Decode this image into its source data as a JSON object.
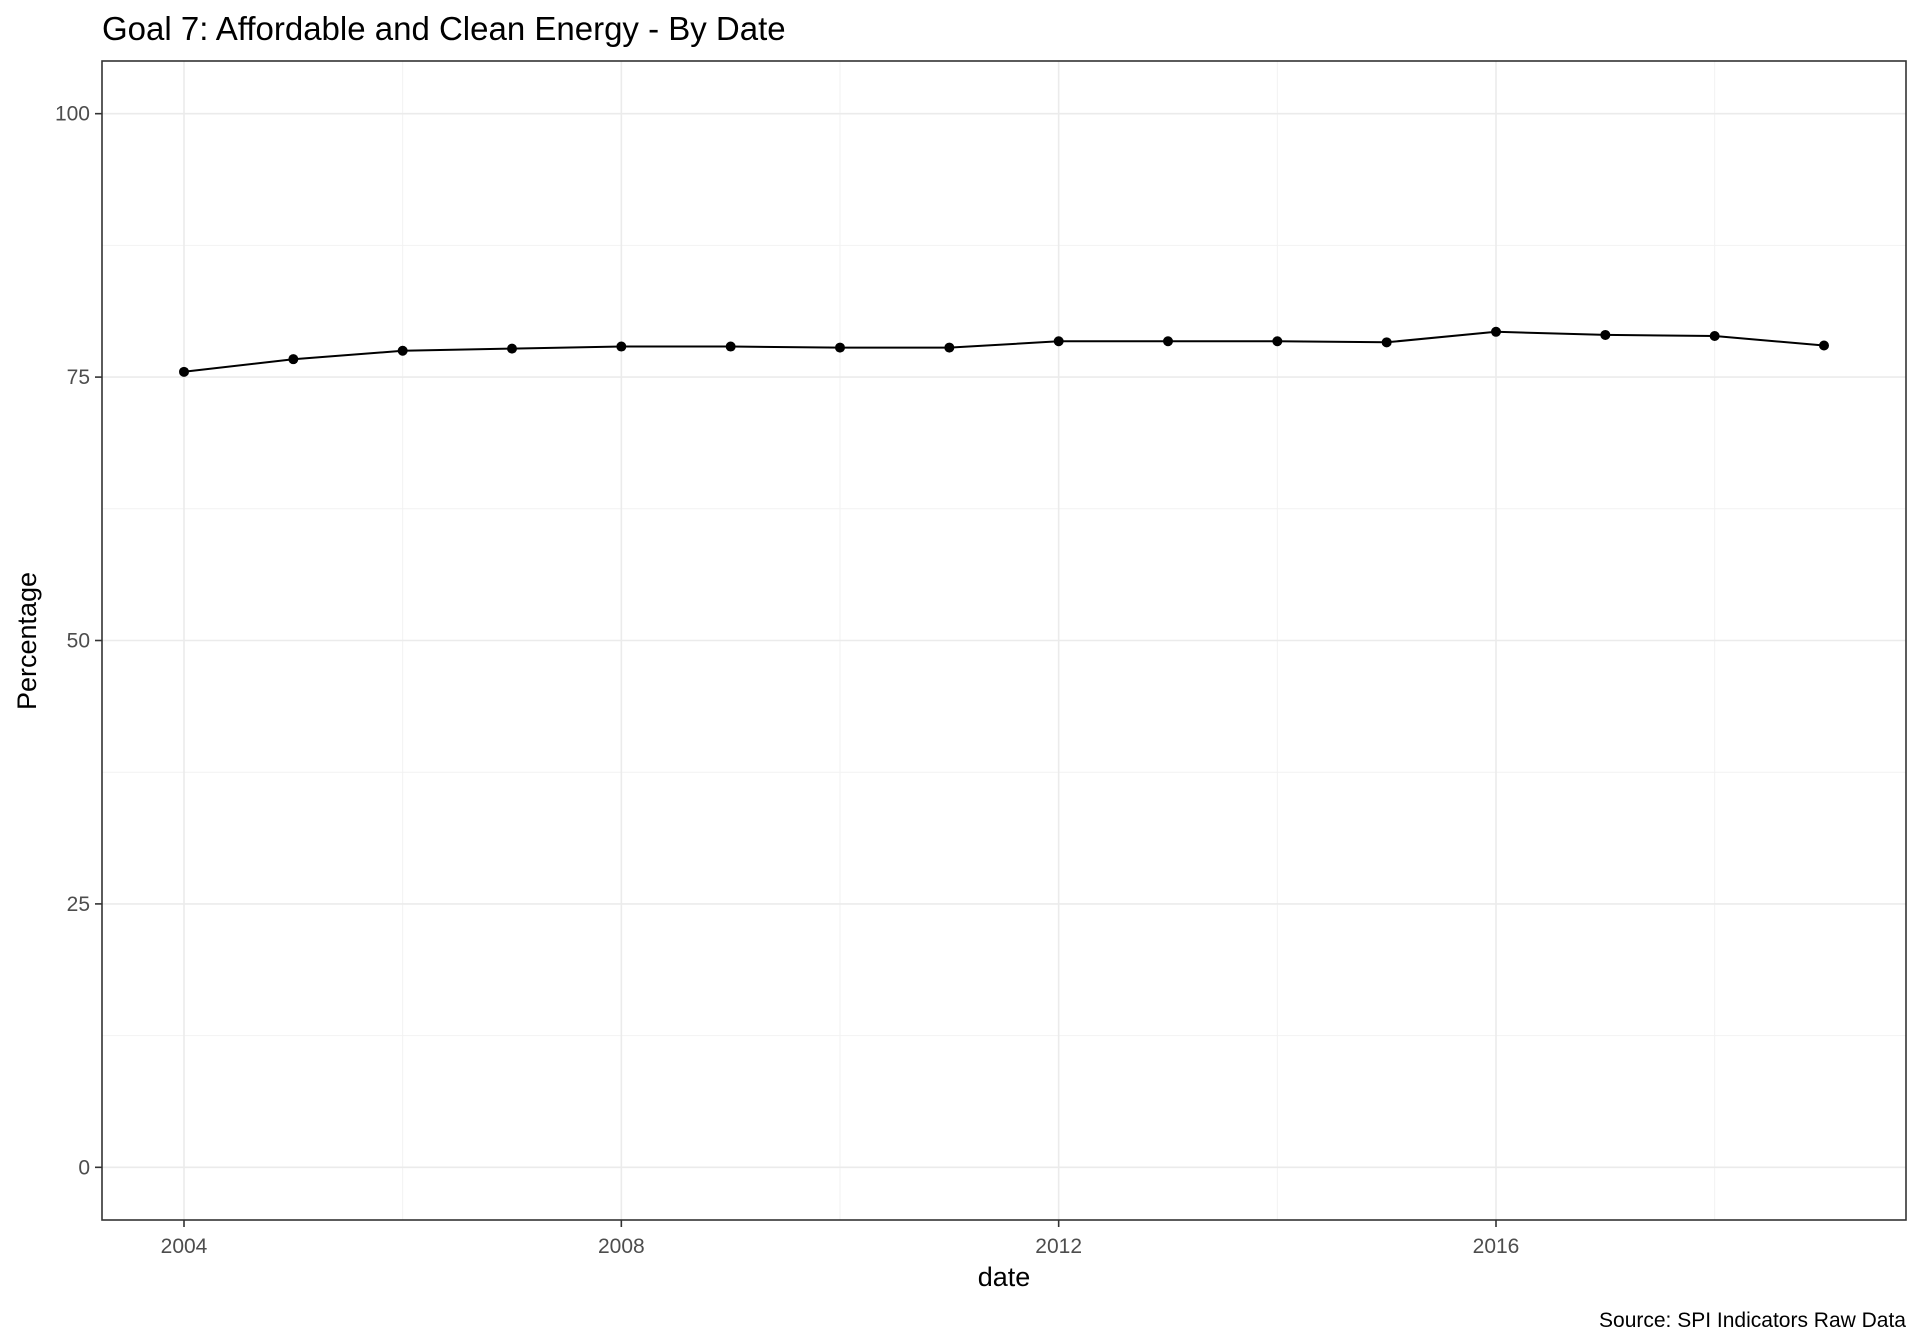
{
  "chart_data": {
    "type": "line",
    "title": "Goal 7: Affordable and Clean Energy - By Date",
    "xlabel": "date",
    "ylabel": "Percentage",
    "caption": "Source: SPI Indicators Raw Data",
    "x": [
      2004,
      2005,
      2006,
      2007,
      2008,
      2009,
      2010,
      2011,
      2012,
      2013,
      2014,
      2015,
      2016,
      2017,
      2018,
      2019
    ],
    "values": [
      75.5,
      76.7,
      77.5,
      77.7,
      77.9,
      77.9,
      77.8,
      77.8,
      78.4,
      78.4,
      78.4,
      78.3,
      79.3,
      79.0,
      78.9,
      78.0
    ],
    "xlim": [
      2003.25,
      2019.75
    ],
    "ylim": [
      -5,
      105
    ],
    "x_ticks": [
      2004,
      2008,
      2012,
      2016
    ],
    "x_tick_labels": [
      "2004",
      "2008",
      "2012",
      "2016"
    ],
    "y_ticks": [
      0,
      25,
      50,
      75,
      100
    ],
    "y_tick_labels": [
      "0",
      "25",
      "50",
      "75",
      "100"
    ],
    "grid": true,
    "colors": {
      "series": "#000000",
      "grid": "#ebebeb",
      "border": "#333333"
    }
  }
}
